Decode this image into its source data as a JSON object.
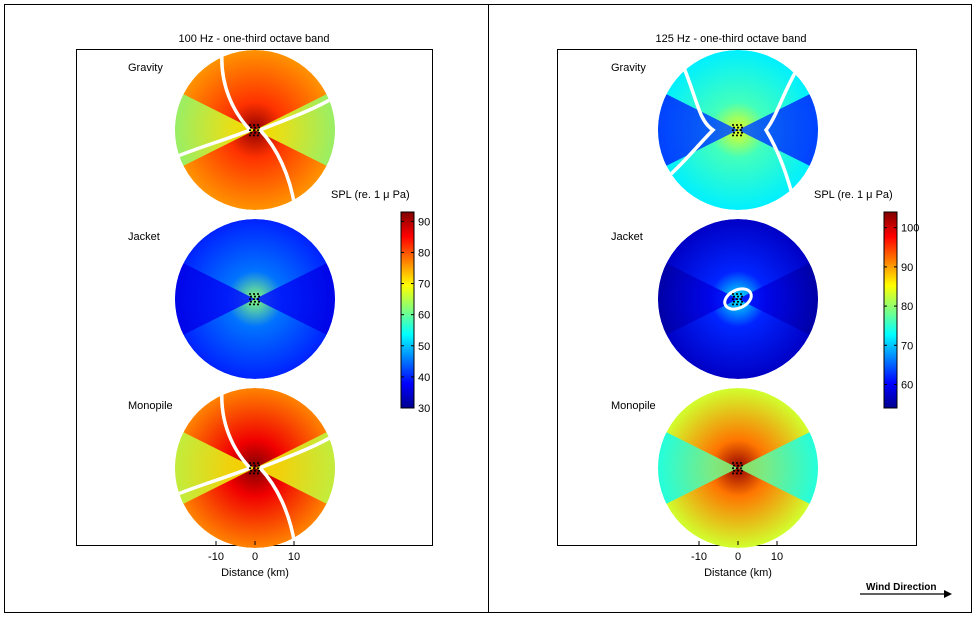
{
  "colors": {
    "jet": [
      "#00008f",
      "#0000ff",
      "#007fff",
      "#00ffff",
      "#7fff7f",
      "#ffff00",
      "#ff7f00",
      "#ff0000",
      "#7f0000"
    ],
    "axis": "#000000",
    "interface": "#ffffff",
    "turbine": "#000000"
  },
  "wind": {
    "label": "Wind Direction",
    "icon": "arrow-right-icon"
  },
  "chart_data": [
    {
      "type": "heatmap",
      "title": "100 Hz - one-third octave band",
      "xlabel": "Distance (km)",
      "x_ticks": [
        -10,
        0,
        10
      ],
      "colorbar": {
        "label": "SPL (re. 1 μ Pa)",
        "ticks": [
          30,
          40,
          50,
          60,
          70,
          80,
          90
        ],
        "range": [
          30,
          93
        ]
      },
      "maps": [
        {
          "name": "Gravity",
          "center_spl": 92,
          "near_spl": 82,
          "edge_spl": 76,
          "side_spl": 69,
          "side_edge_spl": 62,
          "interface": "spiral"
        },
        {
          "name": "Jacket",
          "center_spl": 62,
          "near_spl": 45,
          "edge_spl": 40,
          "side_spl": 39,
          "side_edge_spl": 36,
          "interface": "none"
        },
        {
          "name": "Monopile",
          "center_spl": 93,
          "near_spl": 86,
          "edge_spl": 77,
          "side_spl": 70,
          "side_edge_spl": 65,
          "interface": "spiral"
        }
      ]
    },
    {
      "type": "heatmap",
      "title": "125 Hz - one-third octave band",
      "xlabel": "Distance (km)",
      "x_ticks": [
        -10,
        0,
        10
      ],
      "colorbar": {
        "label": "SPL (re. 1 μ Pa)",
        "ticks": [
          60,
          70,
          80,
          90,
          100
        ],
        "range": [
          54,
          104
        ]
      },
      "maps": [
        {
          "name": "Gravity",
          "center_spl": 84,
          "near_spl": 76,
          "edge_spl": 72,
          "side_spl": 64,
          "side_edge_spl": 62,
          "interface": "hourglass"
        },
        {
          "name": "Jacket",
          "center_spl": 72,
          "near_spl": 62,
          "edge_spl": 57,
          "side_spl": 60,
          "side_edge_spl": 55,
          "interface": "ring"
        },
        {
          "name": "Monopile",
          "center_spl": 103,
          "near_spl": 92,
          "edge_spl": 83,
          "side_spl": 79,
          "side_edge_spl": 73,
          "interface": "none"
        }
      ]
    }
  ]
}
